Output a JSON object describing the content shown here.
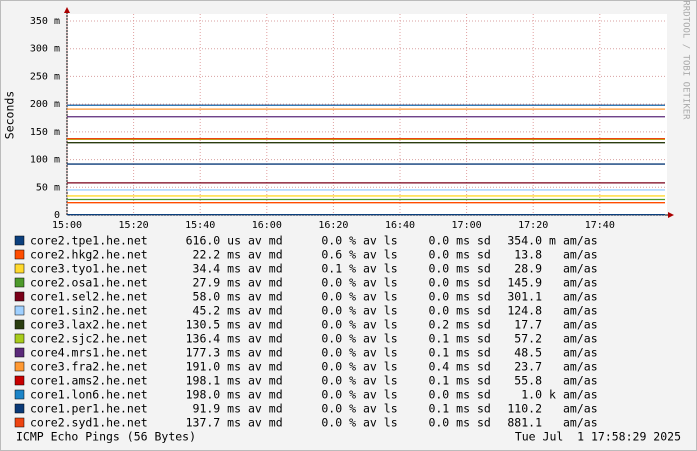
{
  "chart_data": {
    "type": "line",
    "y_axis_label": "Seconds",
    "watermark": "RRDTOOL / TOBI OETIKER",
    "footer": "ICMP Echo Pings (56 Bytes)",
    "timestamp": "Tue Jul  1 17:58:29 2025",
    "xticks": [
      "15:00",
      "15:20",
      "15:40",
      "16:00",
      "16:20",
      "16:40",
      "17:00",
      "17:20",
      "17:40"
    ],
    "ylim": [
      0,
      0.35
    ],
    "yticks": [
      0,
      {
        "value": 0.05,
        "label": "50 m"
      },
      {
        "value": 0.1,
        "label": "100 m"
      },
      {
        "value": 0.15,
        "label": "150 m"
      },
      {
        "value": 0.2,
        "label": "200 m"
      },
      {
        "value": 0.25,
        "label": "250 m"
      },
      {
        "value": 0.3,
        "label": "300 m"
      },
      {
        "value": 0.35,
        "label": "350 m"
      }
    ],
    "grid": true,
    "suffixes": {
      "median": "av md",
      "loss": "av ls",
      "sd": "sd",
      "am": "am/as"
    },
    "series": [
      {
        "name": "core2.tpe1.he.net",
        "color": "#0b3f7d",
        "values": [
          0.000616
        ],
        "value_labels": [
          "616.0 us"
        ],
        "loss": "0.0 %",
        "sd": "0.0 ms",
        "am": "354.0",
        "am_unit": "m"
      },
      {
        "name": "core2.hkg2.he.net",
        "color": "#ff4d00",
        "values": [
          0.0222
        ],
        "value_labels": [
          "22.2 ms"
        ],
        "loss": "0.6 %",
        "sd": "0.0 ms",
        "am": "13.8"
      },
      {
        "name": "core3.tyo1.he.net",
        "color": "#ffd92e",
        "values": [
          0.0344
        ],
        "value_labels": [
          "34.4 ms"
        ],
        "loss": "0.1 %",
        "sd": "0.0 ms",
        "am": "28.9"
      },
      {
        "name": "core2.osa1.he.net",
        "color": "#4e9a2b",
        "values": [
          0.0279
        ],
        "value_labels": [
          "27.9 ms"
        ],
        "loss": "0.0 %",
        "sd": "0.0 ms",
        "am": "145.9"
      },
      {
        "name": "core1.sel2.he.net",
        "color": "#7a0019",
        "values": [
          0.058
        ],
        "value_labels": [
          "58.0 ms"
        ],
        "loss": "0.0 %",
        "sd": "0.0 ms",
        "am": "301.1"
      },
      {
        "name": "core1.sin2.he.net",
        "color": "#9fd0ff",
        "values": [
          0.0452
        ],
        "value_labels": [
          "45.2 ms"
        ],
        "loss": "0.0 %",
        "sd": "0.0 ms",
        "am": "124.8"
      },
      {
        "name": "core3.lax2.he.net",
        "color": "#2a3d10",
        "values": [
          0.1305
        ],
        "value_labels": [
          "130.5 ms"
        ],
        "loss": "0.0 %",
        "sd": "0.2 ms",
        "am": "17.7"
      },
      {
        "name": "core2.sjc2.he.net",
        "color": "#a8cc1c",
        "values": [
          0.1364
        ],
        "value_labels": [
          "136.4 ms"
        ],
        "loss": "0.0 %",
        "sd": "0.1 ms",
        "am": "57.2"
      },
      {
        "name": "core4.mrs1.he.net",
        "color": "#5b2a7a",
        "values": [
          0.1773
        ],
        "value_labels": [
          "177.3 ms"
        ],
        "loss": "0.0 %",
        "sd": "0.1 ms",
        "am": "48.5"
      },
      {
        "name": "core3.fra2.he.net",
        "color": "#ff9933",
        "values": [
          0.191
        ],
        "value_labels": [
          "191.0 ms"
        ],
        "loss": "0.0 %",
        "sd": "0.4 ms",
        "am": "23.7"
      },
      {
        "name": "core1.ams2.he.net",
        "color": "#c80000",
        "values": [
          0.1981
        ],
        "value_labels": [
          "198.1 ms"
        ],
        "loss": "0.0 %",
        "sd": "0.1 ms",
        "am": "55.8"
      },
      {
        "name": "core1.lon6.he.net",
        "color": "#1b84c8",
        "values": [
          0.198
        ],
        "value_labels": [
          "198.0 ms"
        ],
        "loss": "0.0 %",
        "sd": "0.0 ms",
        "am": "1.0",
        "am_unit": "k"
      },
      {
        "name": "core1.per1.he.net",
        "color": "#0a3a78",
        "values": [
          0.0919
        ],
        "value_labels": [
          "91.9 ms"
        ],
        "loss": "0.0 %",
        "sd": "0.1 ms",
        "am": "110.2"
      },
      {
        "name": "core2.syd1.he.net",
        "color": "#ee4411",
        "values": [
          0.1377
        ],
        "value_labels": [
          "137.7 ms"
        ],
        "loss": "0.0 %",
        "sd": "0.0 ms",
        "am": "881.1"
      }
    ]
  }
}
